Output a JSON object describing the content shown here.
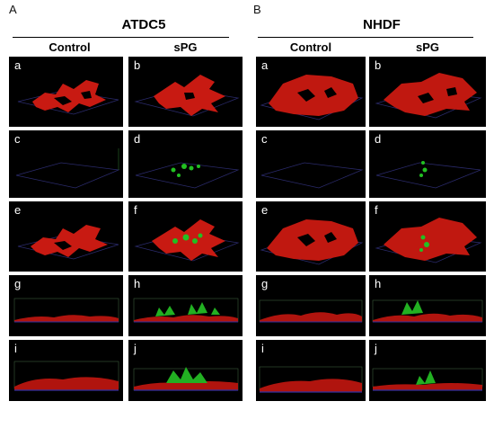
{
  "figure": {
    "panel_A": "A",
    "panel_B": "B",
    "left": {
      "title": "ATDC5",
      "col1": "Control",
      "col2": "sPG"
    },
    "right": {
      "title": "NHDF",
      "col1": "Control",
      "col2": "sPG"
    },
    "row_letters": [
      [
        "a",
        "b"
      ],
      [
        "c",
        "d"
      ],
      [
        "e",
        "f"
      ],
      [
        "g",
        "h"
      ],
      [
        "i",
        "j"
      ]
    ]
  }
}
